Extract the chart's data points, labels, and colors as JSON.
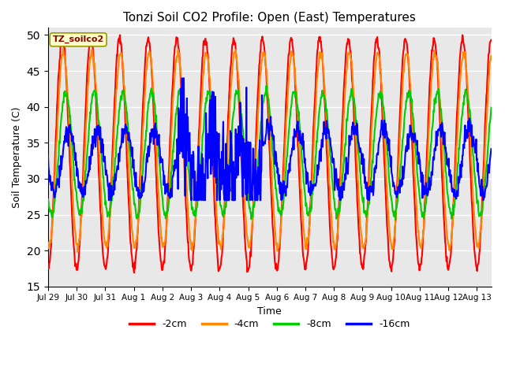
{
  "title": "Tonzi Soil CO2 Profile: Open (East) Temperatures",
  "xlabel": "Time",
  "ylabel": "Soil Temperature (C)",
  "ylim": [
    15,
    51
  ],
  "yticks": [
    15,
    20,
    25,
    30,
    35,
    40,
    45,
    50
  ],
  "legend_label": "TZ_soilco2",
  "series_labels": [
    "-2cm",
    "-4cm",
    "-8cm",
    "-16cm"
  ],
  "series_colors": [
    "#ff0000",
    "#ff8800",
    "#00cc00",
    "#0000ff"
  ],
  "plot_bg_color": "#e8e8e8",
  "grid_color": "#ffffff",
  "x_tick_labels": [
    "Jul 29",
    "Jul 30",
    "Jul 31",
    "Aug 1",
    "Aug 2",
    "Aug 3",
    "Aug 4",
    "Aug 5",
    "Aug 6",
    "Aug 7",
    "Aug 8",
    "Aug 9",
    "Aug 10",
    "Aug 11",
    "Aug 12",
    "Aug 13"
  ],
  "line_width": 1.5,
  "series_params": [
    {
      "mean": 33.5,
      "amplitude": 16.0,
      "phase": 1.57,
      "noise": 0.3,
      "clip_min": 15,
      "clip_max": 51
    },
    {
      "mean": 34.0,
      "amplitude": 13.5,
      "phase": 1.8,
      "noise": 0.3,
      "clip_min": 19,
      "clip_max": 51
    },
    {
      "mean": 33.5,
      "amplitude": 8.5,
      "phase": 2.3,
      "noise": 0.35,
      "clip_min": 23,
      "clip_max": 43
    },
    {
      "mean": 32.5,
      "amplitude": 4.5,
      "phase": 3.0,
      "noise": 0.8,
      "clip_min": 26,
      "clip_max": 44
    }
  ]
}
